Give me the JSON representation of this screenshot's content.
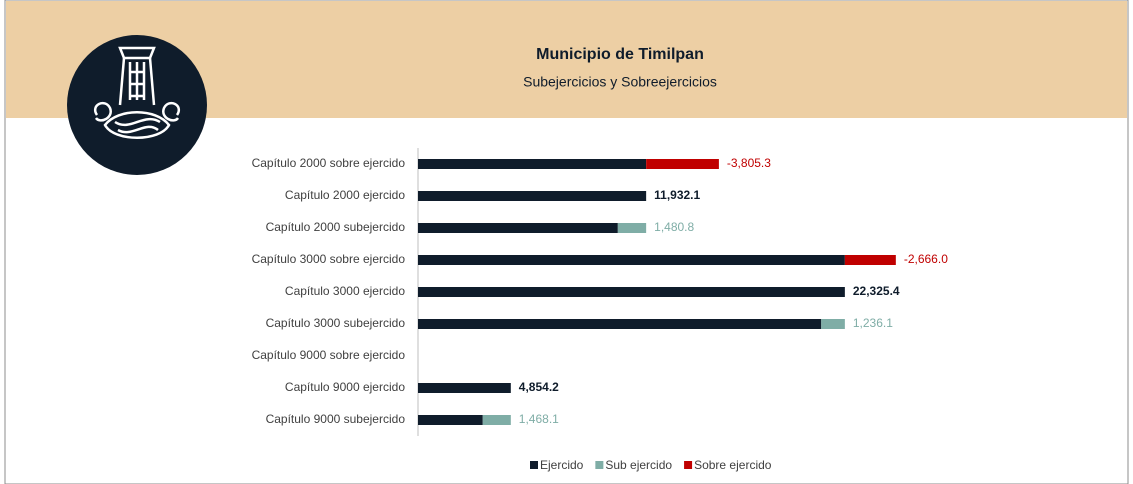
{
  "chart_data": {
    "type": "stacked-barh",
    "title": "Municipio de Timilpan",
    "subtitle": "Subejercicios y Sobreejercicios",
    "categories": [
      "Capítulo 2000 sobre ejercido",
      "Capítulo 2000 ejercido",
      "Capítulo 2000 subejercido",
      "Capítulo 3000 sobre ejercido",
      "Capítulo 3000 ejercido",
      "Capítulo 3000 subejercido",
      "Capítulo 9000 sobre ejercido",
      "Capítulo 9000 ejercido",
      "Capítulo 9000 subejercido"
    ],
    "series": [
      {
        "name": "Ejercido",
        "color": "#0f1c2b",
        "values": [
          11932.1,
          11932.1,
          10451.3,
          22325.4,
          22325.4,
          21089.3,
          null,
          4854.2,
          3386.1
        ],
        "value_labels": [
          null,
          "11,932.1",
          null,
          null,
          "22,325.4",
          null,
          null,
          "4,854.2",
          null
        ]
      },
      {
        "name": "Sub ejercido",
        "color": "#7fada6",
        "values": [
          null,
          null,
          1480.8,
          null,
          null,
          1236.1,
          null,
          null,
          1468.1
        ],
        "value_labels": [
          null,
          null,
          "1,480.8",
          null,
          null,
          "1,236.1",
          null,
          null,
          "1,468.1"
        ]
      },
      {
        "name": "Sobre ejercido",
        "color": "#c00000",
        "values": [
          3805.3,
          null,
          null,
          2666.0,
          null,
          null,
          null,
          null,
          null
        ],
        "value_labels": [
          "-3,805.3",
          null,
          null,
          "-2,666.0",
          null,
          null,
          null,
          null,
          null
        ]
      }
    ],
    "xlim": [
      0,
      30000
    ],
    "legend": "bottom"
  }
}
